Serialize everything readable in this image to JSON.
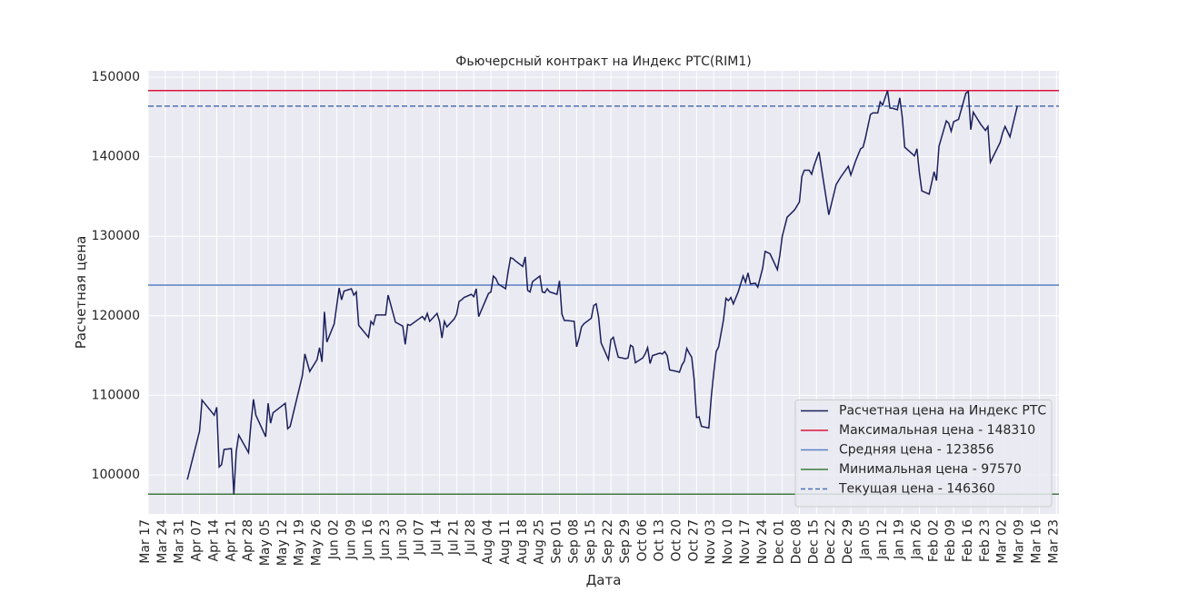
{
  "chart_data": {
    "type": "line",
    "title": "Фьючерсный контракт на Индекс РТС(RIM1)",
    "x_label": "Дата",
    "y_label": "Расчетная цена",
    "grid": true,
    "legend_position": "lower right",
    "xlim": [
      "Mar 17",
      "Mar 24"
    ],
    "ylim": [
      95090,
      150800
    ],
    "yticks": [
      100000,
      110000,
      120000,
      130000,
      140000,
      150000
    ],
    "xticks": [
      "Mar 17",
      "Mar 24",
      "Mar 31",
      "Apr 07",
      "Apr 14",
      "Apr 21",
      "Apr 28",
      "May 05",
      "May 12",
      "May 19",
      "May 26",
      "Jun 02",
      "Jun 09",
      "Jun 16",
      "Jun 23",
      "Jun 30",
      "Jul 07",
      "Jul 14",
      "Jul 21",
      "Jul 28",
      "Aug 04",
      "Aug 11",
      "Aug 18",
      "Aug 25",
      "Sep 01",
      "Sep 08",
      "Sep 15",
      "Sep 22",
      "Sep 29",
      "Oct 06",
      "Oct 13",
      "Oct 20",
      "Oct 27",
      "Nov 03",
      "Nov 10",
      "Nov 17",
      "Nov 24",
      "Dec 01",
      "Dec 08",
      "Dec 15",
      "Dec 22",
      "Dec 29",
      "Jan 05",
      "Jan 12",
      "Jan 19",
      "Jan 26",
      "Feb 02",
      "Feb 09",
      "Feb 16",
      "Feb 23",
      "Mar 02",
      "Mar 09",
      "Mar 16",
      "Mar 23"
    ],
    "x": [
      "Apr 02",
      "Apr 07",
      "Apr 08",
      "Apr 13",
      "Apr 14",
      "Apr 15",
      "Apr 16",
      "Apr 17",
      "Apr 20",
      "Apr 21",
      "Apr 22",
      "Apr 23",
      "Apr 27",
      "Apr 28",
      "Apr 29",
      "Apr 30",
      "May 04",
      "May 05",
      "May 06",
      "May 07",
      "May 12",
      "May 13",
      "May 14",
      "May 19",
      "May 20",
      "May 22",
      "May 25",
      "May 26",
      "May 27",
      "May 28",
      "May 29",
      "Jun 01",
      "Jun 03",
      "Jun 04",
      "Jun 05",
      "Jun 08",
      "Jun 09",
      "Jun 10",
      "Jun 11",
      "Jun 15",
      "Jun 16",
      "Jun 17",
      "Jun 18",
      "Jun 22",
      "Jun 23",
      "Jun 24",
      "Jun 26",
      "Jun 29",
      "Jun 30",
      "Jul 01",
      "Jul 02",
      "Jul 06",
      "Jul 07",
      "Jul 08",
      "Jul 09",
      "Jul 10",
      "Jul 13",
      "Jul 14",
      "Jul 15",
      "Jul 16",
      "Jul 17",
      "Jul 20",
      "Jul 21",
      "Jul 22",
      "Jul 23",
      "Jul 24",
      "Jul 27",
      "Jul 28",
      "Jul 29",
      "Jul 30",
      "Aug 03",
      "Aug 04",
      "Aug 05",
      "Aug 06",
      "Aug 07",
      "Aug 10",
      "Aug 11",
      "Aug 12",
      "Aug 13",
      "Aug 14",
      "Aug 17",
      "Aug 18",
      "Aug 19",
      "Aug 20",
      "Aug 21",
      "Aug 24",
      "Aug 25",
      "Aug 26",
      "Aug 27",
      "Aug 28",
      "Aug 31",
      "Sep 01",
      "Sep 02",
      "Sep 03",
      "Sep 04",
      "Sep 07",
      "Sep 08",
      "Sep 09",
      "Sep 10",
      "Sep 11",
      "Sep 14",
      "Sep 15",
      "Sep 16",
      "Sep 17",
      "Sep 18",
      "Sep 21",
      "Sep 22",
      "Sep 23",
      "Sep 24",
      "Sep 25",
      "Sep 28",
      "Sep 29",
      "Sep 30",
      "Oct 01",
      "Oct 02",
      "Oct 05",
      "Oct 06",
      "Oct 07",
      "Oct 08",
      "Oct 09",
      "Oct 12",
      "Oct 13",
      "Oct 14",
      "Oct 15",
      "Oct 16",
      "Oct 19",
      "Oct 20",
      "Oct 21",
      "Oct 22",
      "Oct 23",
      "Oct 24",
      "Oct 25",
      "Oct 26",
      "Oct 27",
      "Oct 28",
      "Oct 29",
      "Nov 01",
      "Nov 02",
      "Nov 03",
      "Nov 04",
      "Nov 05",
      "Nov 07",
      "Nov 08",
      "Nov 09",
      "Nov 10",
      "Nov 11",
      "Nov 13",
      "Nov 15",
      "Nov 16",
      "Nov 17",
      "Nov 18",
      "Nov 20",
      "Nov 21",
      "Nov 23",
      "Nov 24",
      "Nov 26",
      "Nov 29",
      "Nov 30",
      "Dec 01",
      "Dec 03",
      "Dec 05",
      "Dec 06",
      "Dec 08",
      "Dec 09",
      "Dec 10",
      "Dec 12",
      "Dec 13",
      "Dec 14",
      "Dec 16",
      "Dec 18",
      "Dec 20",
      "Dec 23",
      "Dec 25",
      "Dec 28",
      "Dec 29",
      "Dec 31",
      "Jan 02",
      "Jan 03",
      "Jan 04",
      "Jan 06",
      "Jan 07",
      "Jan 09",
      "Jan 10",
      "Jan 11",
      "Jan 13",
      "Jan 14",
      "Jan 15",
      "Jan 17",
      "Jan 18",
      "Jan 19",
      "Jan 20",
      "Jan 24",
      "Jan 25",
      "Jan 26",
      "Jan 27",
      "Jan 30",
      "Feb 01",
      "Feb 02",
      "Feb 03",
      "Feb 06",
      "Feb 07",
      "Feb 08",
      "Feb 09",
      "Feb 11",
      "Feb 14",
      "Feb 15",
      "Feb 16",
      "Feb 17",
      "Feb 20",
      "Feb 22",
      "Feb 23",
      "Feb 24",
      "Feb 28",
      "Mar 01",
      "Mar 02",
      "Mar 04",
      "Mar 05",
      "Mar 07"
    ],
    "series": [
      {
        "name": "Расчетная цена на Индекс РТС",
        "color": "#1b1f5c",
        "values": [
          99400,
          105500,
          109400,
          107500,
          108500,
          101000,
          101300,
          103200,
          103300,
          97570,
          103000,
          105000,
          102800,
          106500,
          109500,
          107500,
          104800,
          109000,
          106500,
          107800,
          109000,
          105800,
          106100,
          112500,
          115200,
          113000,
          114500,
          116000,
          114200,
          120500,
          116700,
          119000,
          123500,
          122000,
          123100,
          123400,
          122600,
          123000,
          118800,
          117300,
          119300,
          118900,
          120100,
          120100,
          122600,
          121500,
          119200,
          118700,
          116400,
          118900,
          118800,
          119700,
          119900,
          119500,
          120300,
          119300,
          120300,
          119300,
          117200,
          119300,
          118600,
          119600,
          120200,
          121800,
          122000,
          122300,
          122700,
          122400,
          123400,
          119900,
          122800,
          123000,
          125000,
          124700,
          124000,
          123400,
          125500,
          127300,
          127200,
          126900,
          126200,
          127400,
          123200,
          123000,
          124300,
          125000,
          123000,
          122900,
          123400,
          123000,
          122700,
          124400,
          120200,
          119400,
          119400,
          119300,
          116100,
          117200,
          118600,
          119000,
          119700,
          121300,
          121500,
          119800,
          116600,
          114500,
          117000,
          117300,
          116000,
          114800,
          114600,
          114700,
          116300,
          116100,
          114100,
          114700,
          115200,
          116000,
          114000,
          115000,
          115300,
          115200,
          115500,
          115000,
          113200,
          113000,
          112900,
          113800,
          114300,
          115900,
          115300,
          114800,
          112000,
          107200,
          107300,
          106100,
          105900,
          109800,
          112800,
          115500,
          116100,
          119500,
          122200,
          121900,
          122300,
          121500,
          123000,
          125000,
          124200,
          125400,
          124000,
          124100,
          123600,
          126000,
          128100,
          127800,
          125800,
          127600,
          130000,
          132400,
          133000,
          133300,
          134300,
          137500,
          138300,
          138300,
          137800,
          138900,
          140600,
          136600,
          132700,
          136500,
          137500,
          138800,
          137700,
          139500,
          141000,
          141200,
          142400,
          145300,
          145500,
          145500,
          146900,
          146500,
          148310,
          146100,
          146100,
          145900,
          147400,
          145000,
          141200,
          140100,
          141000,
          138000,
          135700,
          135300,
          138100,
          137000,
          141300,
          144500,
          144200,
          143200,
          144400,
          144700,
          148000,
          148200,
          143400,
          145600,
          144100,
          143300,
          143800,
          139300,
          141800,
          143000,
          143800,
          142500,
          143800,
          146360
        ]
      }
    ],
    "hlines": [
      {
        "name": "Максимальная цена - 148310",
        "value": 148310,
        "color": "#dc143c",
        "dashed": false
      },
      {
        "name": "Средняя цена - 123856",
        "value": 123856,
        "color": "#5b7fc4",
        "dashed": false
      },
      {
        "name": "Минимальная цена - 97570",
        "value": 97570,
        "color": "#3e7a3e",
        "dashed": false
      },
      {
        "name": "Текущая цена - 146360",
        "value": 146360,
        "color": "#4c72b0",
        "dashed": true
      }
    ]
  }
}
